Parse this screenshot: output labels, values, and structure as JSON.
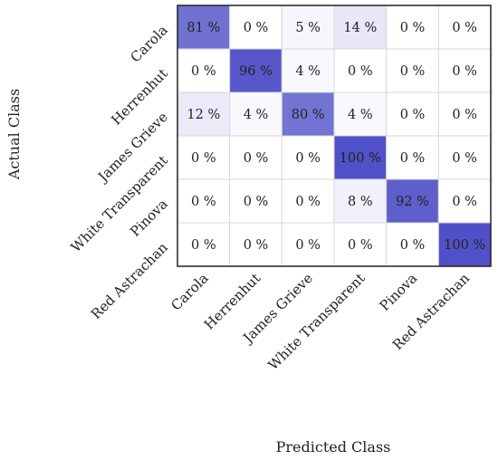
{
  "chart_data": {
    "type": "heatmap",
    "title": "",
    "xlabel": "Predicted Class",
    "ylabel": "Actual Class",
    "x_categories": [
      "Carola",
      "Herrenhut",
      "James Grieve",
      "White Transparent",
      "Pinova",
      "Red Astrachan"
    ],
    "y_categories": [
      "Carola",
      "Herrenhut",
      "James Grieve",
      "White Transparent",
      "Pinova",
      "Red Astrachan"
    ],
    "values": [
      [
        81,
        0,
        5,
        14,
        0,
        0
      ],
      [
        0,
        96,
        4,
        0,
        0,
        0
      ],
      [
        12,
        4,
        80,
        4,
        0,
        0
      ],
      [
        0,
        0,
        0,
        100,
        0,
        0
      ],
      [
        0,
        0,
        0,
        8,
        92,
        0
      ],
      [
        0,
        0,
        0,
        0,
        0,
        100
      ]
    ],
    "value_suffix": "%",
    "value_range": [
      0,
      100
    ],
    "colors": {
      "low": "#ffffff",
      "high": "#5050c8",
      "grid": "#d9d9d9",
      "border": "#222222"
    }
  }
}
